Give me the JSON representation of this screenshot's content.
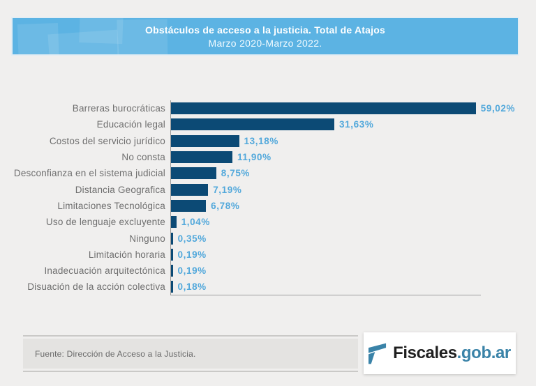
{
  "header": {
    "title": "Obstáculos de acceso a la justicia. Total de Atajos",
    "subtitle": "Marzo 2020-Marzo 2022.",
    "background_color": "#5cb3e3"
  },
  "chart_data": {
    "type": "bar",
    "orientation": "horizontal",
    "title": "Obstáculos de acceso a la justicia. Total de Atajos",
    "subtitle": "Marzo 2020-Marzo 2022.",
    "categories": [
      "Barreras burocráticas",
      "Educación legal",
      "Costos del servicio jurídico",
      "No consta",
      "Desconfianza en el sistema judicial",
      "Distancia Geografica",
      "Limitaciones Tecnológica",
      "Uso de lenguaje excluyente",
      "Ninguno",
      "Limitación horaria",
      "Inadecuación arquitectónica",
      "Disuación de la acción colectiva"
    ],
    "values": [
      59.02,
      31.63,
      13.18,
      11.9,
      8.75,
      7.19,
      6.78,
      1.04,
      0.35,
      0.19,
      0.19,
      0.18
    ],
    "value_labels": [
      "59,02%",
      "31,63%",
      "13,18%",
      "11,90%",
      "8,75%",
      "7,19%",
      "6,78%",
      "1,04%",
      "0,35%",
      "0,19%",
      "0,19%",
      "0,18%"
    ],
    "unit": "%",
    "xlim": [
      0,
      60
    ],
    "grid": false,
    "legend": false,
    "bar_color": "#0c4a75",
    "value_label_color": "#52a8db",
    "category_label_color": "#6e6e6e"
  },
  "footer": {
    "source": "Fuente: Dirección de Acceso a la Justicia."
  },
  "logo": {
    "name": "Fiscales.gob.ar",
    "text_black": "Fiscales",
    "text_accent": ".gob.ar",
    "accent_color": "#3a83a8",
    "icon": "fiscales-f-icon"
  }
}
